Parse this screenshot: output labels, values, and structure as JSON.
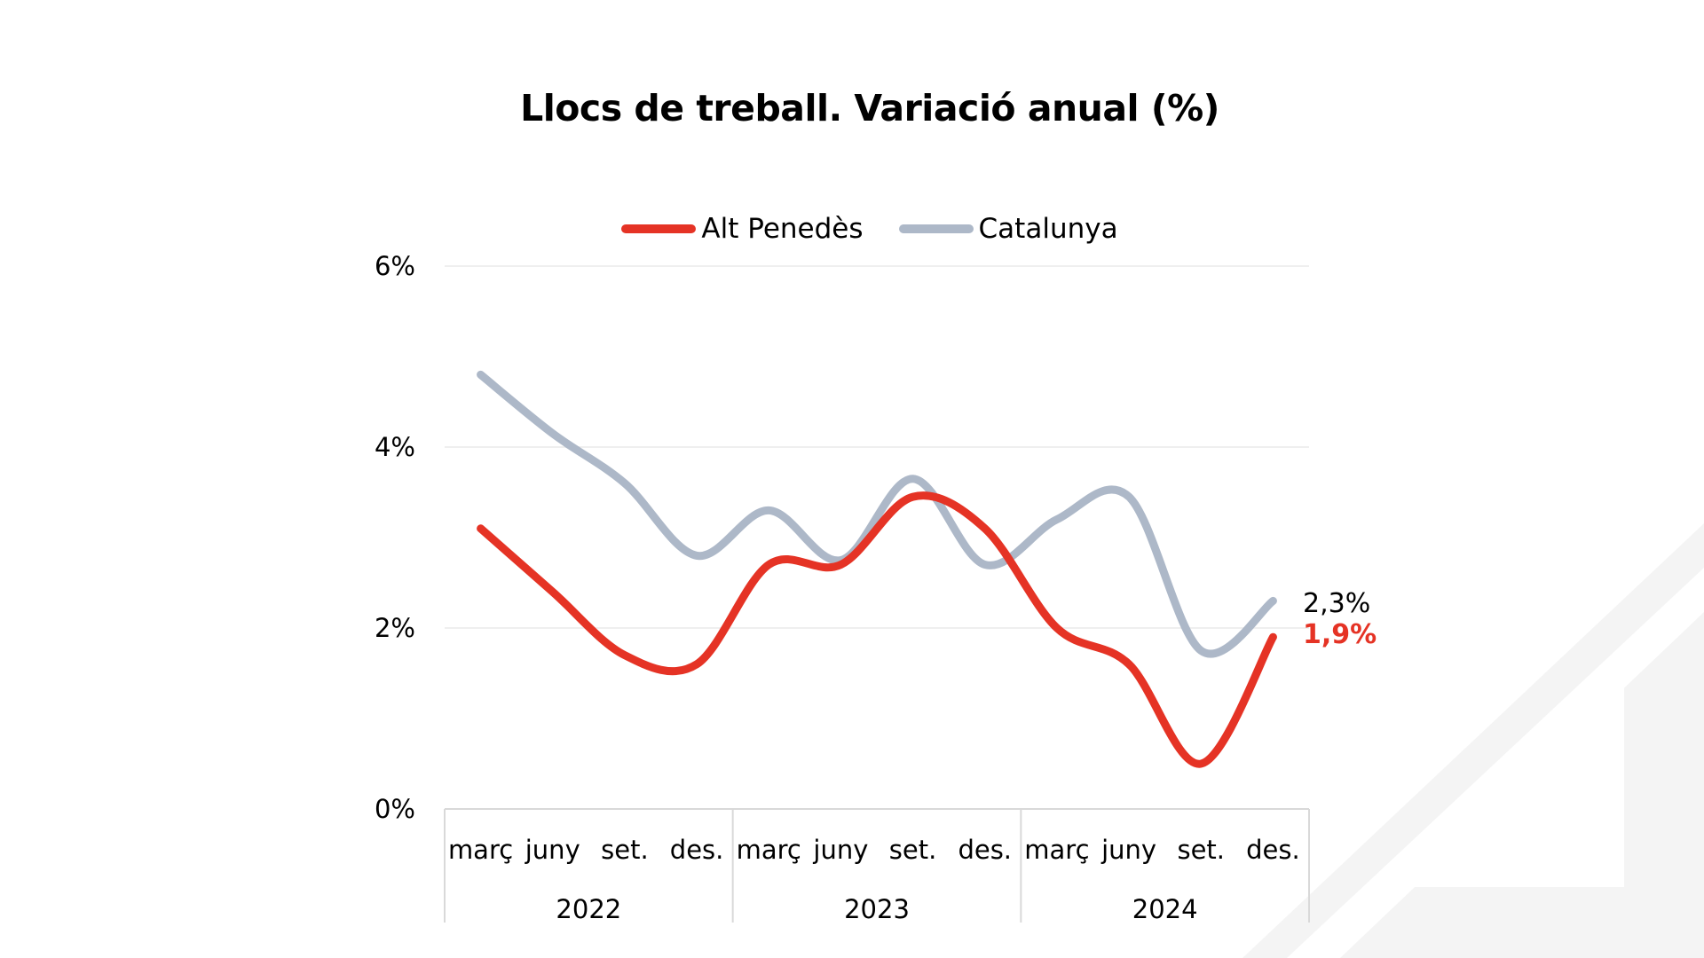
{
  "chart_data": {
    "type": "line",
    "title": "Llocs de treball. Variació anual (%)",
    "xlabel": "",
    "ylabel": "",
    "ylim": [
      0,
      6
    ],
    "yticks": [
      0,
      2,
      4,
      6
    ],
    "ytick_labels": [
      "0%",
      "2%",
      "4%",
      "6%"
    ],
    "grid": true,
    "legend_position": "top-center",
    "categories": [
      "març",
      "juny",
      "set.",
      "des.",
      "març",
      "juny",
      "set.",
      "des.",
      "març",
      "juny",
      "set.",
      "des."
    ],
    "groups": [
      {
        "label": "2022",
        "count": 4
      },
      {
        "label": "2023",
        "count": 4
      },
      {
        "label": "2024",
        "count": 4
      }
    ],
    "series": [
      {
        "name": "Alt Penedès",
        "color": "#e53325",
        "values": [
          3.1,
          2.4,
          1.7,
          1.6,
          2.7,
          2.7,
          3.45,
          3.1,
          2.0,
          1.6,
          0.5,
          1.9
        ],
        "end_label": "1,9%"
      },
      {
        "name": "Catalunya",
        "color": "#adb8c8",
        "values": [
          4.8,
          4.15,
          3.6,
          2.8,
          3.3,
          2.75,
          3.65,
          2.7,
          3.2,
          3.45,
          1.75,
          2.3
        ],
        "end_label": "2,3%"
      }
    ]
  }
}
